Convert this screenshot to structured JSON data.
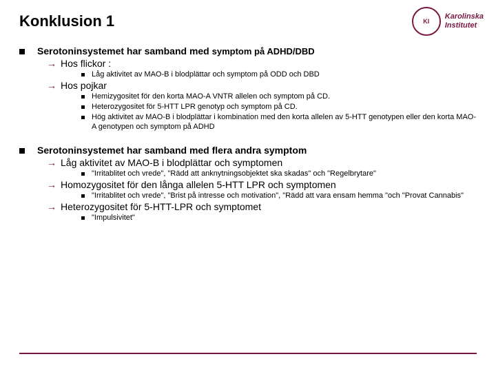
{
  "colors": {
    "accent": "#7a1742",
    "text": "#000000",
    "background": "#ffffff"
  },
  "typography": {
    "title_size": 22,
    "l1_size": 14,
    "l2_size": 14,
    "l3_size": 11,
    "font_family": "Arial"
  },
  "title": "Konklusion 1",
  "logo": {
    "seal_text": "KI",
    "name_line1": "Karolinska",
    "name_line2": "Institutet"
  },
  "block1": {
    "heading_a": "Serotoninsystemet har samband med ",
    "heading_b": "symptom på ADHD/DBD",
    "sub1": "Hos flickor :",
    "sub1_points": [
      "Låg aktivitet av MAO-B i blodplättar och symptom på ODD och DBD"
    ],
    "sub2": "Hos pojkar",
    "sub2_points": [
      "Hemizygositet för den korta  MAO-A VNTR allelen och symptom på CD.",
      "Heterozygositet för  5-HTT LPR genotyp och symptom på CD.",
      "Hög aktivitet av MAO-B i blodplättar i kombination med den korta allelen av 5-HTT genotypen eller den korta MAO-A genotypen och symptom på ADHD"
    ]
  },
  "block2": {
    "heading": "Serotoninsystemet har samband med flera andra symptom",
    "sub1": "Låg aktivitet av MAO-B i blodplättar  och symptomen",
    "sub1_points": [
      "\"Irritablitet och vrede\", \"Rädd att anknytningsobjektet ska skadas\" och  \"Regelbrytare\""
    ],
    "sub2": "Homozygositet för den långa allelen  5-HTT LPR och symptomen",
    "sub2_points": [
      "\"Irritablitet och vrede\", \"Brist på intresse och motivation\", \"Rädd att vara ensam hemma \"och  \"Provat Cannabis\""
    ],
    "sub3": "Heterozygositet för 5-HTT-LPR  och symptomet",
    "sub3_points": [
      "\"Impulsivitet\""
    ]
  }
}
